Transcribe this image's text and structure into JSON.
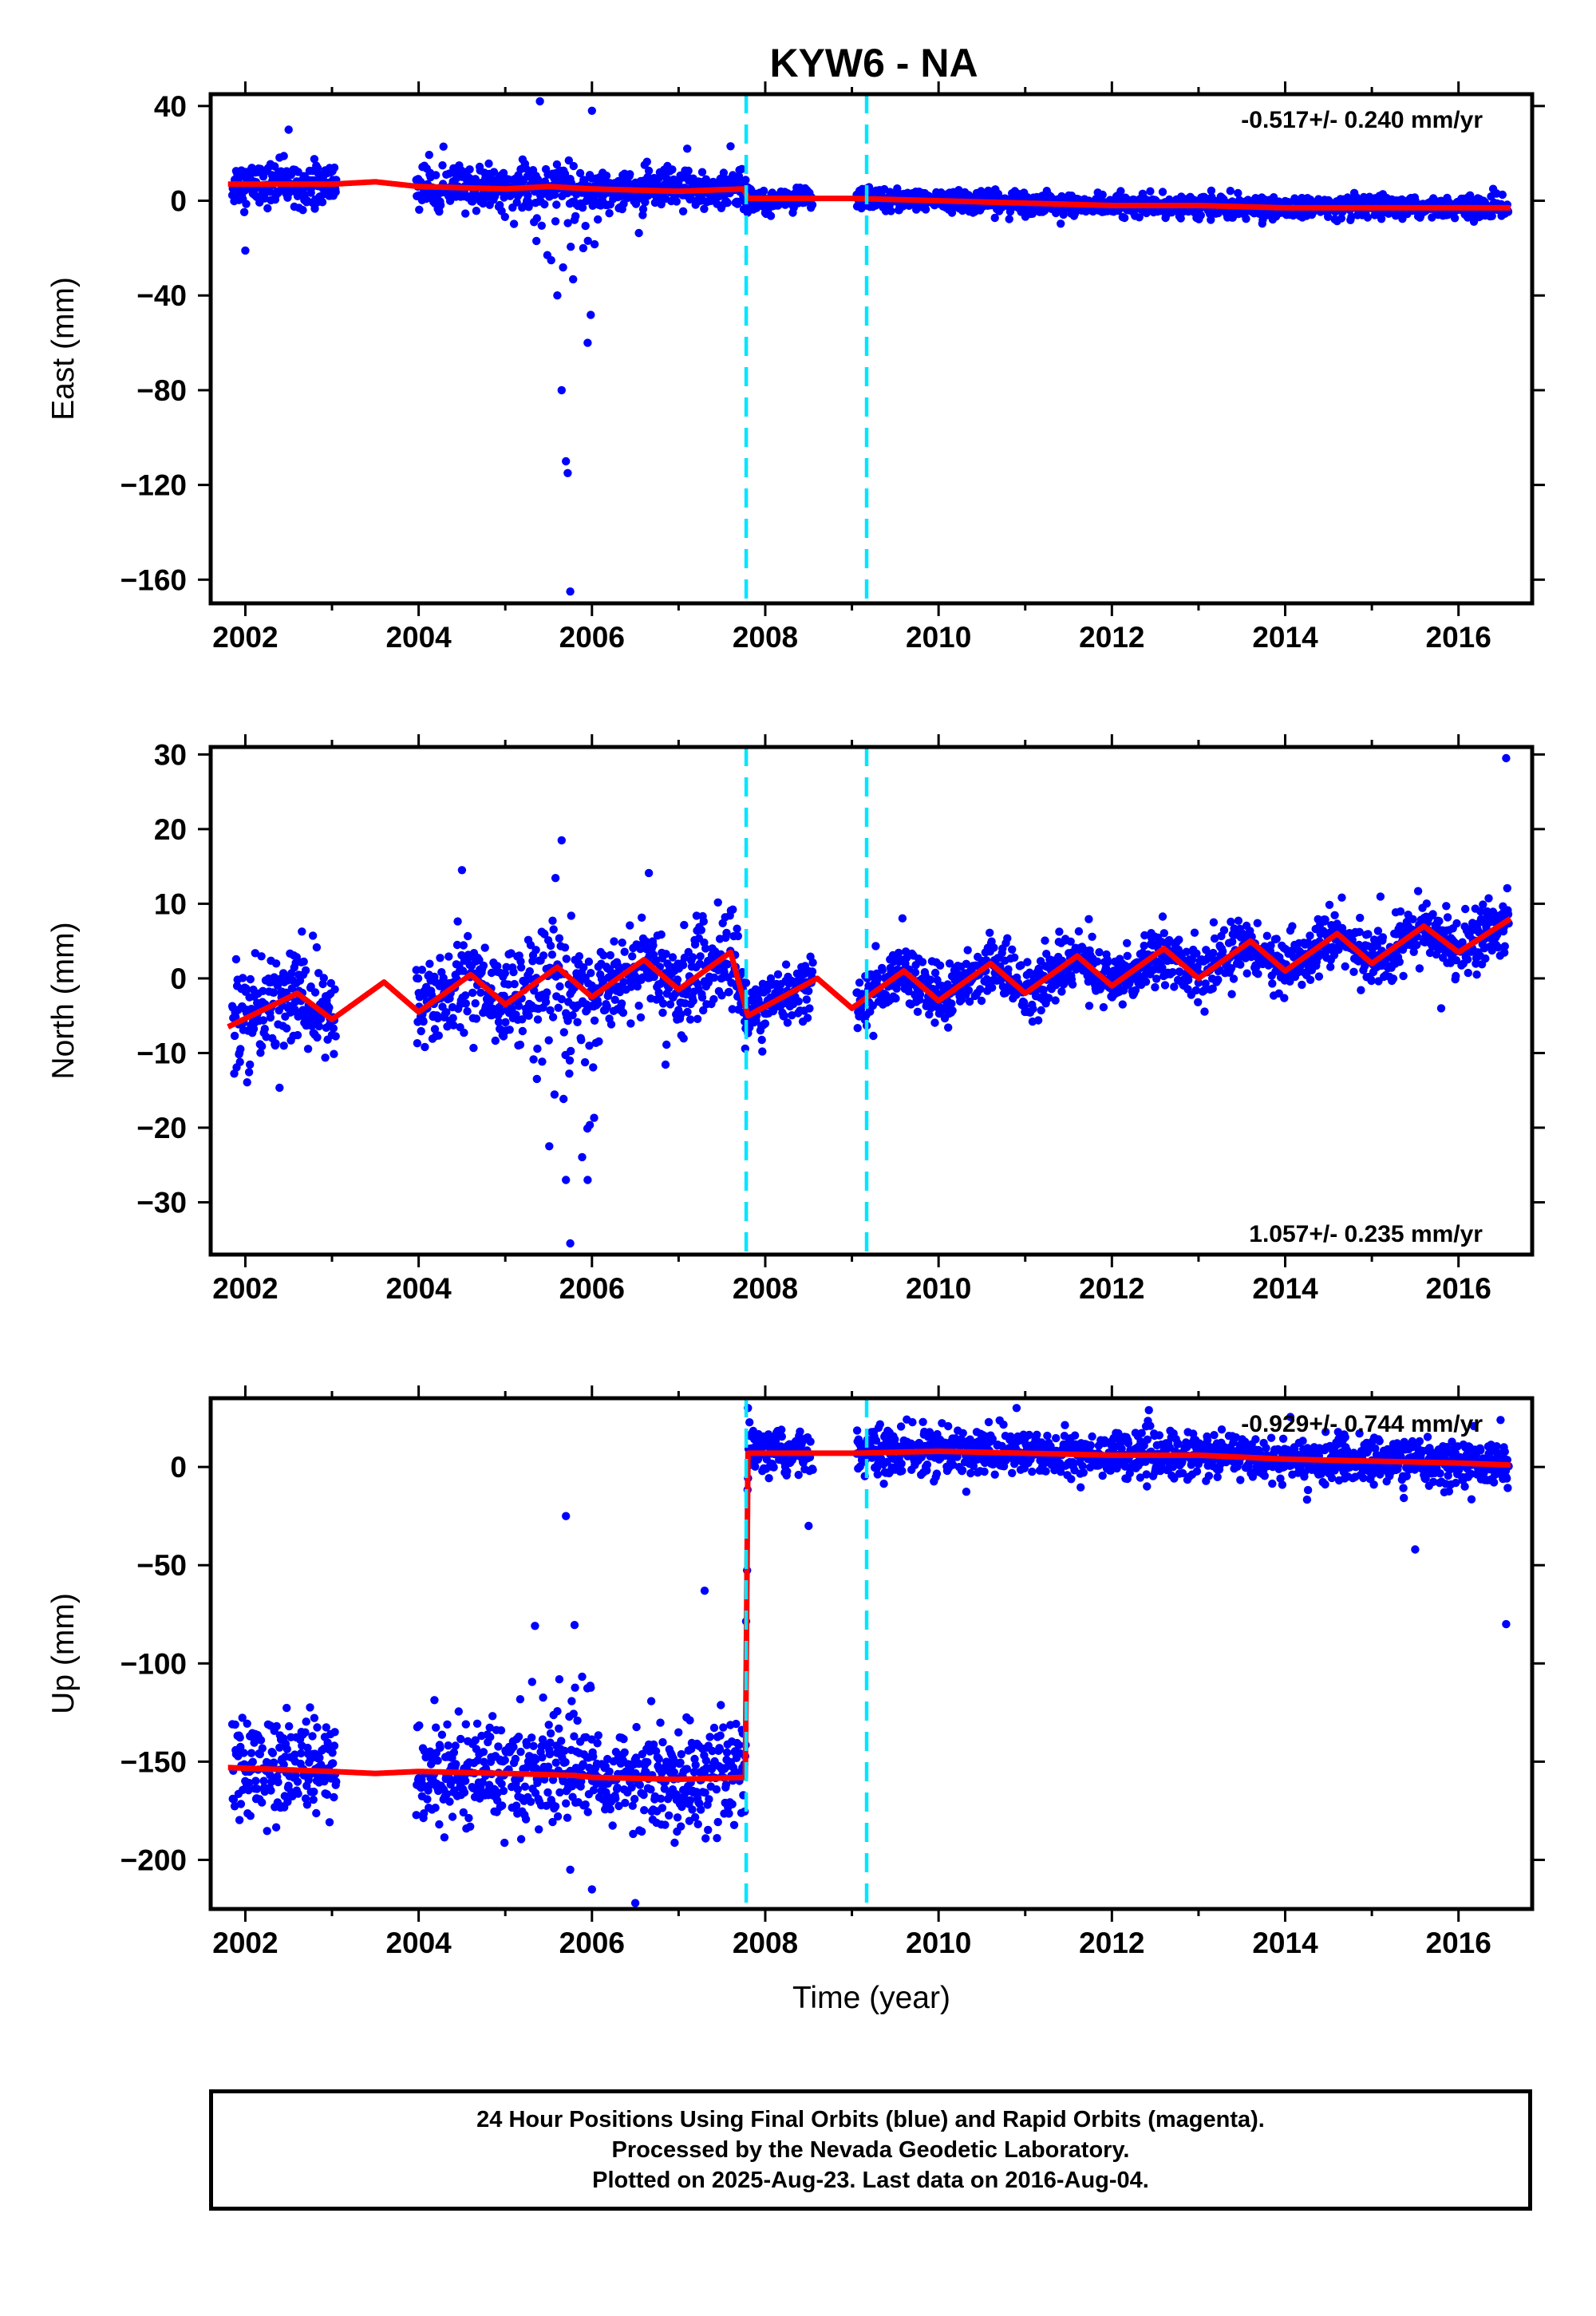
{
  "title": "KYW6 - NA",
  "xlabel": "Time (year)",
  "footer": {
    "line1": "24 Hour Positions Using Final Orbits (blue) and Rapid Orbits (magenta).",
    "line2": "Processed by the Nevada Geodetic Laboratory.",
    "line3": "Plotted on 2025-Aug-23. Last data on 2016-Aug-04."
  },
  "colors": {
    "data": "#0000ff",
    "model": "#ff0000",
    "offset": "#00e5ff"
  },
  "chart_data": [
    {
      "type": "scatter",
      "component": "east",
      "ylabel": "East (mm)",
      "rate": "-0.517+/- 0.240 mm/yr",
      "rate_placement": "top-right",
      "xlim": [
        2001.6,
        2016.85
      ],
      "ylim": [
        -170,
        45
      ],
      "xticks": [
        "2002",
        "2004",
        "2006",
        "2008",
        "2010",
        "2012",
        "2014",
        "2016"
      ],
      "yticks": [
        "40",
        "0",
        "−40",
        "−80",
        "−120",
        "−160"
      ],
      "offset_lines": [
        2007.78,
        2009.17
      ],
      "model": [
        [
          2001.8,
          7
        ],
        [
          2003.0,
          7
        ],
        [
          2003.5,
          8
        ],
        [
          2004.0,
          6
        ],
        [
          2005.0,
          5
        ],
        [
          2005.5,
          6
        ],
        [
          2006.0,
          5
        ],
        [
          2007.0,
          4
        ],
        [
          2007.75,
          5
        ],
        [
          2007.8,
          1
        ],
        [
          2009.0,
          1
        ],
        [
          2010.0,
          0
        ],
        [
          2011.0,
          -1
        ],
        [
          2012.0,
          -2
        ],
        [
          2013.0,
          -2
        ],
        [
          2014.0,
          -3
        ],
        [
          2015.0,
          -3
        ],
        [
          2016.0,
          -3
        ],
        [
          2016.6,
          -3
        ]
      ],
      "outliers": [
        [
          2002.0,
          -21
        ],
        [
          2002.5,
          30
        ],
        [
          2005.4,
          42
        ],
        [
          2005.6,
          -40
        ],
        [
          2005.65,
          -80
        ],
        [
          2005.7,
          -110
        ],
        [
          2005.72,
          -115
        ],
        [
          2005.75,
          -165
        ],
        [
          2006.0,
          38
        ],
        [
          2005.95,
          -60
        ],
        [
          2005.9,
          -20
        ],
        [
          2007.1,
          22
        ],
        [
          2007.6,
          23
        ],
        [
          2016.4,
          5
        ]
      ]
    },
    {
      "type": "scatter",
      "component": "north",
      "ylabel": "North (mm)",
      "rate": "1.057+/- 0.235 mm/yr",
      "rate_placement": "bottom-right",
      "xlim": [
        2001.6,
        2016.85
      ],
      "ylim": [
        -37,
        31
      ],
      "xticks": [
        "2002",
        "2004",
        "2006",
        "2008",
        "2010",
        "2012",
        "2014",
        "2016"
      ],
      "yticks": [
        "30",
        "20",
        "10",
        "0",
        "−10",
        "−20",
        "−30"
      ],
      "offset_lines": [
        2007.78,
        2009.17
      ],
      "model": [
        [
          2001.8,
          -6.5
        ],
        [
          2002.6,
          -2
        ],
        [
          2003.0,
          -5.5
        ],
        [
          2003.6,
          -0.5
        ],
        [
          2004.0,
          -4.5
        ],
        [
          2004.6,
          0.5
        ],
        [
          2005.0,
          -3.5
        ],
        [
          2005.6,
          1.5
        ],
        [
          2006.0,
          -2.5
        ],
        [
          2006.6,
          2.5
        ],
        [
          2007.0,
          -1.5
        ],
        [
          2007.6,
          3.5
        ],
        [
          2007.8,
          -5
        ],
        [
          2008.6,
          0
        ],
        [
          2009.0,
          -4
        ],
        [
          2009.6,
          1
        ],
        [
          2010.0,
          -3
        ],
        [
          2010.6,
          2
        ],
        [
          2011.0,
          -2
        ],
        [
          2011.6,
          3
        ],
        [
          2012.0,
          -1
        ],
        [
          2012.6,
          4
        ],
        [
          2013.0,
          0
        ],
        [
          2013.6,
          5
        ],
        [
          2014.0,
          1
        ],
        [
          2014.6,
          6
        ],
        [
          2015.0,
          2
        ],
        [
          2015.6,
          7
        ],
        [
          2016.0,
          3.5
        ],
        [
          2016.6,
          8
        ]
      ],
      "outliers": [
        [
          2005.65,
          18.5
        ],
        [
          2005.75,
          -35.5
        ],
        [
          2005.7,
          -27
        ],
        [
          2005.95,
          -27
        ],
        [
          2004.5,
          14.5
        ],
        [
          2016.55,
          29.5
        ],
        [
          2015.8,
          -4
        ]
      ]
    },
    {
      "type": "scatter",
      "component": "up",
      "ylabel": "Up (mm)",
      "rate": "-0.929+/- 0.744 mm/yr",
      "rate_placement": "top-right",
      "xlim": [
        2001.6,
        2016.85
      ],
      "ylim": [
        -225,
        35
      ],
      "xticks": [
        "2002",
        "2004",
        "2006",
        "2008",
        "2010",
        "2012",
        "2014",
        "2016"
      ],
      "yticks": [
        "0",
        "−50",
        "−100",
        "−150",
        "−200"
      ],
      "offset_lines": [
        2007.78,
        2009.17
      ],
      "model": [
        [
          2001.8,
          -153
        ],
        [
          2003.0,
          -155
        ],
        [
          2003.5,
          -156
        ],
        [
          2004.0,
          -155
        ],
        [
          2005.0,
          -156
        ],
        [
          2005.8,
          -157
        ],
        [
          2006.0,
          -158
        ],
        [
          2007.0,
          -159
        ],
        [
          2007.77,
          -158
        ],
        [
          2007.8,
          7
        ],
        [
          2009.0,
          7
        ],
        [
          2010.0,
          8
        ],
        [
          2011.0,
          7
        ],
        [
          2012.0,
          6
        ],
        [
          2013.0,
          6
        ],
        [
          2014.0,
          4
        ],
        [
          2015.0,
          3
        ],
        [
          2016.0,
          2
        ],
        [
          2016.6,
          1
        ]
      ],
      "outliers": [
        [
          2005.7,
          -25
        ],
        [
          2005.75,
          -205
        ],
        [
          2006.0,
          -215
        ],
        [
          2006.5,
          -222
        ],
        [
          2007.3,
          -63
        ],
        [
          2007.8,
          30
        ],
        [
          2008.5,
          -30
        ],
        [
          2010.9,
          30
        ],
        [
          2016.55,
          -80
        ],
        [
          2015.5,
          -42
        ]
      ]
    }
  ]
}
